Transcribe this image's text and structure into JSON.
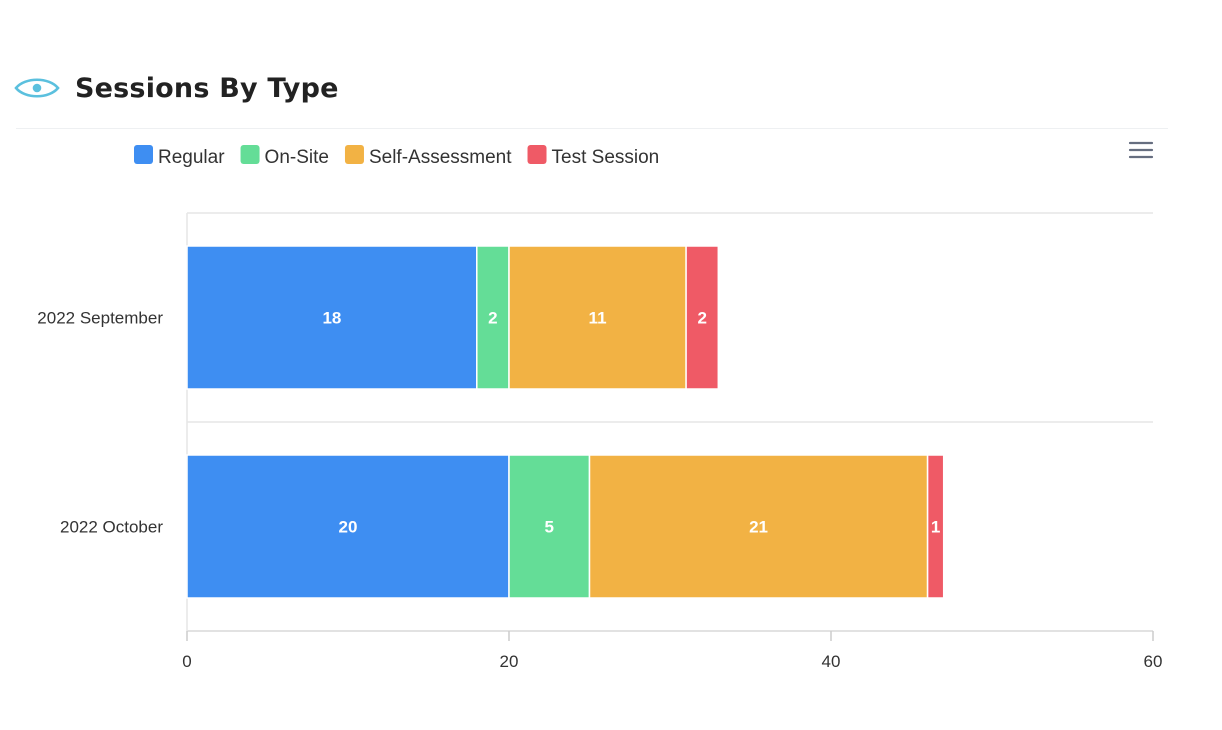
{
  "header": {
    "title": "Sessions By Type",
    "icon": "eye-icon"
  },
  "toolbar": {
    "menu_icon": "hamburger-menu-icon"
  },
  "colors": {
    "accent_icon": "#5bc0de",
    "Regular": "#3e8ef2",
    "On-Site": "#64dd97",
    "Self-Assessment": "#f2b244",
    "Test Session": "#ef5a66"
  },
  "chart_data": {
    "type": "bar",
    "orientation": "horizontal",
    "stacked": true,
    "categories": [
      "2022 September",
      "2022 October"
    ],
    "series": [
      {
        "name": "Regular",
        "values": [
          18,
          20
        ]
      },
      {
        "name": "On-Site",
        "values": [
          2,
          5
        ]
      },
      {
        "name": "Self-Assessment",
        "values": [
          11,
          21
        ]
      },
      {
        "name": "Test Session",
        "values": [
          2,
          1
        ]
      }
    ],
    "xlim": [
      0,
      60
    ],
    "xticks": [
      0,
      20,
      40,
      60
    ],
    "legend_position": "top-left",
    "grid": true,
    "data_labels": true
  }
}
